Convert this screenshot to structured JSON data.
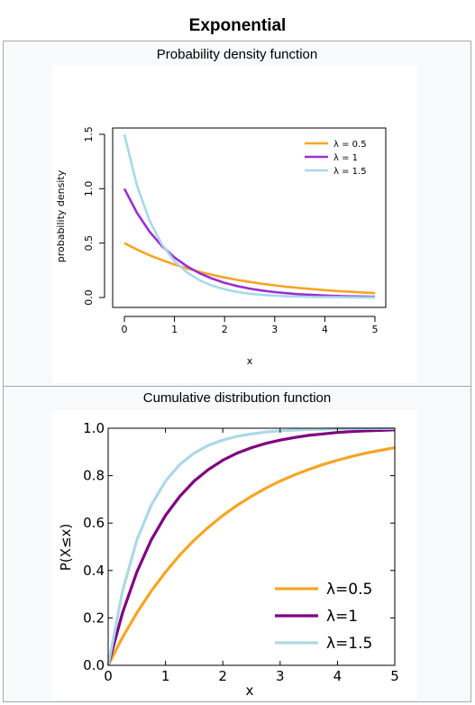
{
  "page": {
    "title": "Exponential"
  },
  "chart_data": [
    {
      "type": "line",
      "title": "Probability density function",
      "xlabel": "x",
      "ylabel": "probability density",
      "xlim": [
        0,
        5
      ],
      "ylim": [
        0,
        1.5
      ],
      "xticks": [
        "0",
        "1",
        "2",
        "3",
        "4",
        "5"
      ],
      "yticks": [
        "0.0",
        "0.5",
        "1.0",
        "1.5"
      ],
      "legend_position": "top-right",
      "grid": false,
      "x": [
        0,
        0.25,
        0.5,
        0.75,
        1,
        1.25,
        1.5,
        1.75,
        2,
        2.25,
        2.5,
        2.75,
        3,
        3.25,
        3.5,
        3.75,
        4,
        4.25,
        4.5,
        4.75,
        5
      ],
      "series": [
        {
          "name": "λ = 0.5",
          "color": "#f5a623",
          "values": [
            0.5,
            0.441,
            0.389,
            0.344,
            0.303,
            0.268,
            0.236,
            0.208,
            0.184,
            0.162,
            0.143,
            0.126,
            0.112,
            0.098,
            0.087,
            0.077,
            0.068,
            0.06,
            0.053,
            0.046,
            0.041
          ]
        },
        {
          "name": "λ = 1",
          "color": "#9b2fd1",
          "values": [
            1.0,
            0.779,
            0.607,
            0.472,
            0.368,
            0.287,
            0.223,
            0.174,
            0.135,
            0.105,
            0.082,
            0.064,
            0.05,
            0.039,
            0.03,
            0.024,
            0.018,
            0.014,
            0.011,
            0.009,
            0.007
          ]
        },
        {
          "name": "λ = 1.5",
          "color": "#a8d8e8",
          "values": [
            1.5,
            1.031,
            0.709,
            0.487,
            0.335,
            0.23,
            0.158,
            0.109,
            0.075,
            0.051,
            0.035,
            0.024,
            0.017,
            0.011,
            0.008,
            0.005,
            0.004,
            0.003,
            0.002,
            0.001,
            0.001
          ]
        }
      ]
    },
    {
      "type": "line",
      "title": "Cumulative distribution function",
      "xlabel": "x",
      "ylabel": "P(X≤x)",
      "xlim": [
        0,
        5
      ],
      "ylim": [
        0,
        1
      ],
      "xticks": [
        "0",
        "1",
        "2",
        "3",
        "4",
        "5"
      ],
      "yticks": [
        "0.0",
        "0.2",
        "0.4",
        "0.6",
        "0.8",
        "1.0"
      ],
      "legend_position": "bottom-right",
      "grid": false,
      "x": [
        0,
        0.25,
        0.5,
        0.75,
        1,
        1.25,
        1.5,
        1.75,
        2,
        2.25,
        2.5,
        2.75,
        3,
        3.25,
        3.5,
        3.75,
        4,
        4.25,
        4.5,
        4.75,
        5
      ],
      "series": [
        {
          "name": "λ=0.5",
          "color": "#f5a623",
          "values": [
            0,
            0.118,
            0.221,
            0.313,
            0.393,
            0.465,
            0.528,
            0.583,
            0.632,
            0.675,
            0.713,
            0.747,
            0.777,
            0.803,
            0.826,
            0.847,
            0.865,
            0.881,
            0.895,
            0.907,
            0.918
          ]
        },
        {
          "name": "λ=1",
          "color": "#800080",
          "values": [
            0,
            0.221,
            0.393,
            0.528,
            0.632,
            0.713,
            0.777,
            0.826,
            0.865,
            0.895,
            0.918,
            0.936,
            0.95,
            0.961,
            0.97,
            0.976,
            0.982,
            0.986,
            0.989,
            0.991,
            0.993
          ]
        },
        {
          "name": "λ=1.5",
          "color": "#add8e6",
          "values": [
            0,
            0.313,
            0.528,
            0.675,
            0.777,
            0.847,
            0.895,
            0.928,
            0.95,
            0.966,
            0.976,
            0.984,
            0.989,
            0.992,
            0.995,
            0.996,
            0.998,
            0.998,
            0.999,
            0.999,
            0.999
          ]
        }
      ]
    }
  ]
}
